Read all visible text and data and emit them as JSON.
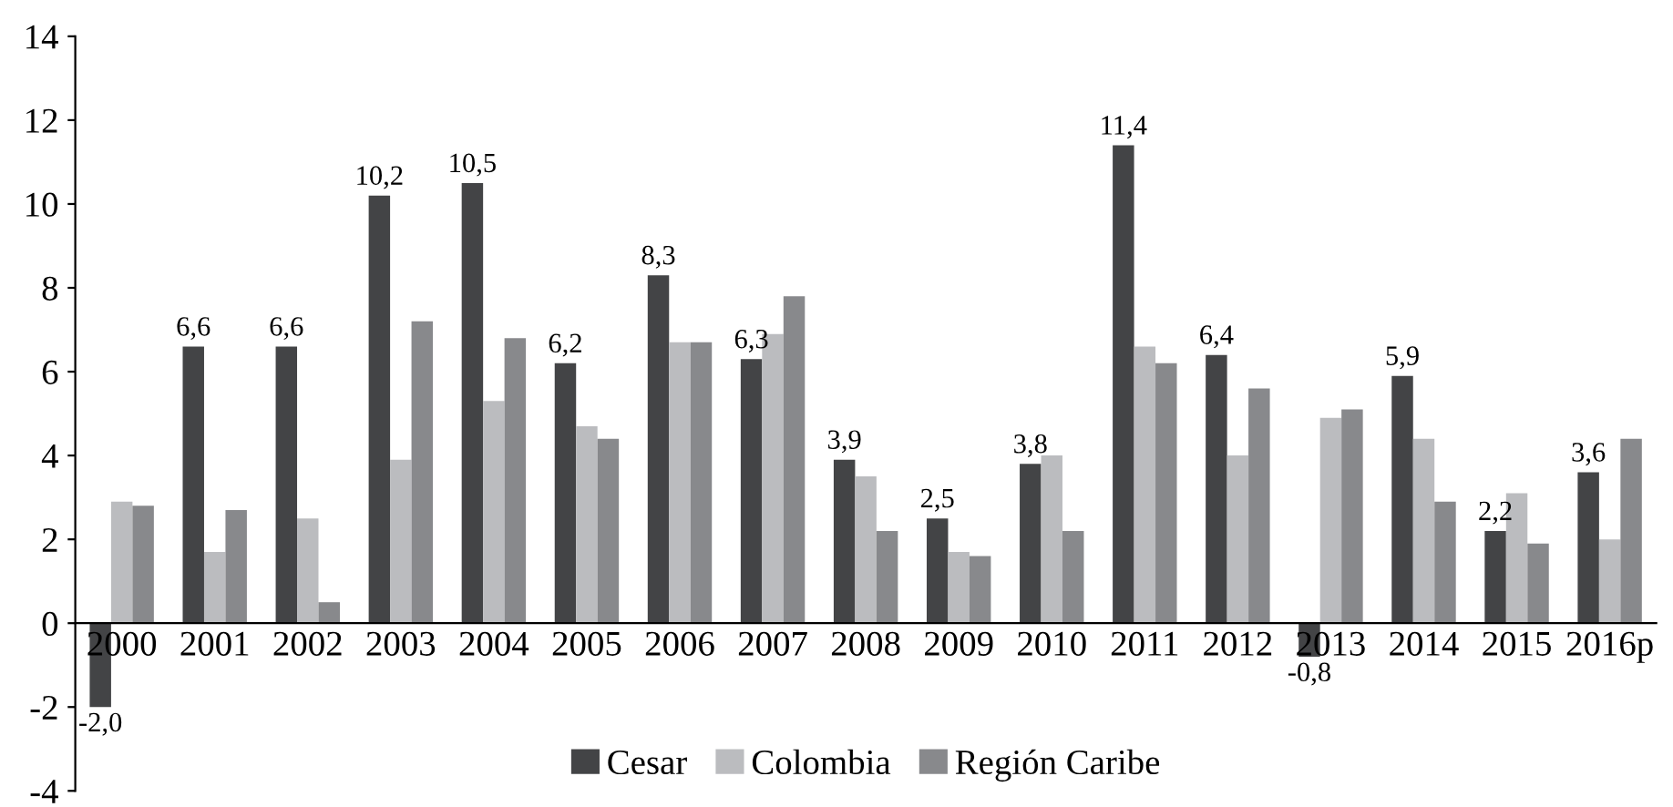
{
  "chart_data": {
    "type": "bar",
    "categories": [
      "2000",
      "2001",
      "2002",
      "2003",
      "2004",
      "2005",
      "2006",
      "2007",
      "2008",
      "2009",
      "2010",
      "2011",
      "2012",
      "2013",
      "2014",
      "2015",
      "2016p"
    ],
    "series": [
      {
        "name": "Cesar",
        "color": "#434446",
        "values": [
          -2.0,
          6.6,
          6.6,
          10.2,
          10.5,
          6.2,
          8.3,
          6.3,
          3.9,
          2.5,
          3.8,
          11.4,
          6.4,
          -0.8,
          5.9,
          2.2,
          3.6
        ],
        "value_labels": [
          "-2,0",
          "6,6",
          "6,6",
          "10,2",
          "10,5",
          "6,2",
          "8,3",
          "6,3",
          "3,9",
          "2,5",
          "3,8",
          "11,4",
          "6,4",
          "-0,8",
          "5,9",
          "2,2",
          "3,6"
        ]
      },
      {
        "name": "Colombia",
        "color": "#bbbcbf",
        "values": [
          2.9,
          1.7,
          2.5,
          3.9,
          5.3,
          4.7,
          6.7,
          6.9,
          3.5,
          1.7,
          4.0,
          6.6,
          4.0,
          4.9,
          4.4,
          3.1,
          2.0
        ]
      },
      {
        "name": "Región Caribe",
        "color": "#88898c",
        "values": [
          2.8,
          2.7,
          0.5,
          7.2,
          6.8,
          4.4,
          6.7,
          7.8,
          2.2,
          1.6,
          2.2,
          6.2,
          5.6,
          5.1,
          2.9,
          1.9,
          4.4
        ]
      }
    ],
    "ylim": [
      -4,
      14
    ],
    "yticks": [
      {
        "value": -4,
        "label": "-4"
      },
      {
        "value": -2,
        "label": "-2"
      },
      0,
      2,
      4,
      6,
      8,
      10,
      12,
      14
    ],
    "grid": false,
    "legend": "bottom"
  }
}
